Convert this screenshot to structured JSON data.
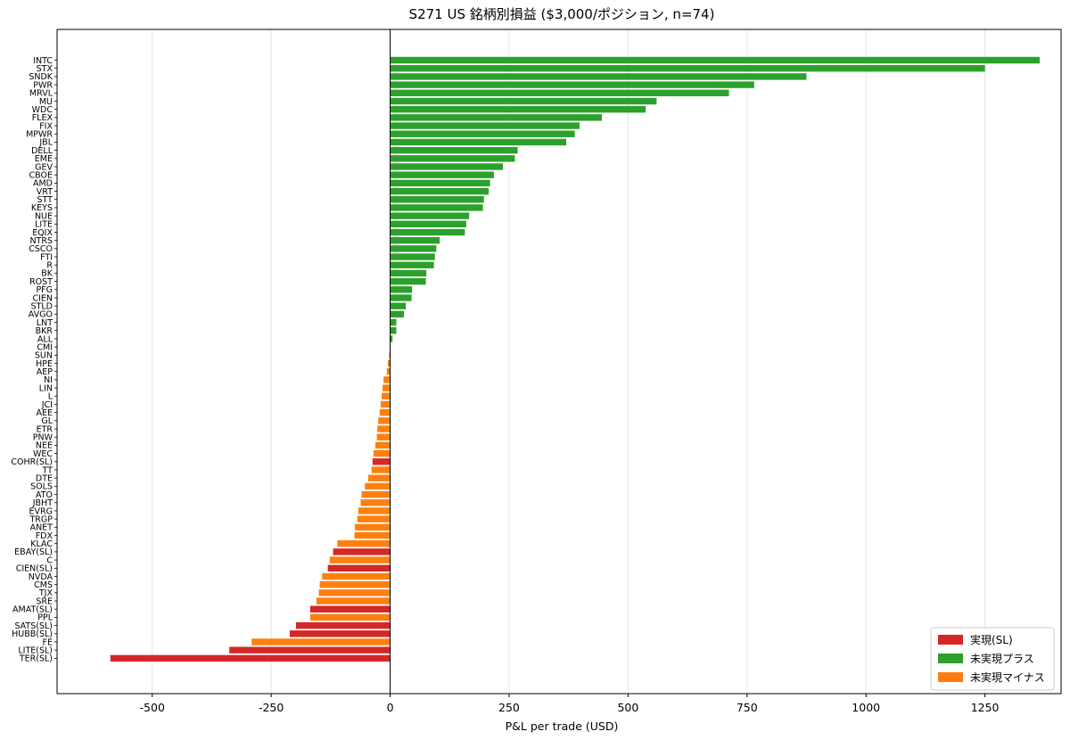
{
  "chart_data": {
    "type": "bar",
    "orientation": "horizontal",
    "title": "S271 US 銘柄別損益 ($3,000/ポジション, n=74)",
    "xlabel": "P&L per trade (USD)",
    "ylabel": "",
    "xlim": [
      -700,
      1410
    ],
    "xticks": [
      -500,
      -250,
      0,
      250,
      500,
      750,
      1000,
      1250
    ],
    "xtick_labels": [
      "-500",
      "-250",
      "0",
      "250",
      "500",
      "750",
      "1000",
      "1250"
    ],
    "grid": "vertical",
    "legend_position": "bottom-right",
    "colors": {
      "realized": "#d62728",
      "unrealized_plus": "#2ca02c",
      "unrealized_minus": "#ff7f0e"
    },
    "legend": [
      {
        "key": "realized",
        "label": "実現(SL)"
      },
      {
        "key": "unrealized_plus",
        "label": "未実現プラス"
      },
      {
        "key": "unrealized_minus",
        "label": "未実現マイナス"
      }
    ],
    "bars": [
      {
        "label": "INTC",
        "value": 1365,
        "status": "unrealized_plus"
      },
      {
        "label": "STX",
        "value": 1250,
        "status": "unrealized_plus"
      },
      {
        "label": "SNDK",
        "value": 875,
        "status": "unrealized_plus"
      },
      {
        "label": "PWR",
        "value": 765,
        "status": "unrealized_plus"
      },
      {
        "label": "MRVL",
        "value": 712,
        "status": "unrealized_plus"
      },
      {
        "label": "MU",
        "value": 560,
        "status": "unrealized_plus"
      },
      {
        "label": "WDC",
        "value": 537,
        "status": "unrealized_plus"
      },
      {
        "label": "FLEX",
        "value": 445,
        "status": "unrealized_plus"
      },
      {
        "label": "FIX",
        "value": 398,
        "status": "unrealized_plus"
      },
      {
        "label": "MPWR",
        "value": 388,
        "status": "unrealized_plus"
      },
      {
        "label": "JBL",
        "value": 370,
        "status": "unrealized_plus"
      },
      {
        "label": "DELL",
        "value": 268,
        "status": "unrealized_plus"
      },
      {
        "label": "EME",
        "value": 262,
        "status": "unrealized_plus"
      },
      {
        "label": "GEV",
        "value": 237,
        "status": "unrealized_plus"
      },
      {
        "label": "CBOE",
        "value": 218,
        "status": "unrealized_plus"
      },
      {
        "label": "AMD",
        "value": 210,
        "status": "unrealized_plus"
      },
      {
        "label": "VRT",
        "value": 207,
        "status": "unrealized_plus"
      },
      {
        "label": "STT",
        "value": 197,
        "status": "unrealized_plus"
      },
      {
        "label": "KEYS",
        "value": 195,
        "status": "unrealized_plus"
      },
      {
        "label": "NUE",
        "value": 166,
        "status": "unrealized_plus"
      },
      {
        "label": "LITE",
        "value": 160,
        "status": "unrealized_plus"
      },
      {
        "label": "EQIX",
        "value": 157,
        "status": "unrealized_plus"
      },
      {
        "label": "NTRS",
        "value": 104,
        "status": "unrealized_plus"
      },
      {
        "label": "CSCO",
        "value": 97,
        "status": "unrealized_plus"
      },
      {
        "label": "FTI",
        "value": 94,
        "status": "unrealized_plus"
      },
      {
        "label": "R",
        "value": 92,
        "status": "unrealized_plus"
      },
      {
        "label": "BK",
        "value": 76,
        "status": "unrealized_plus"
      },
      {
        "label": "ROST",
        "value": 75,
        "status": "unrealized_plus"
      },
      {
        "label": "PFG",
        "value": 46,
        "status": "unrealized_plus"
      },
      {
        "label": "CIEN",
        "value": 45,
        "status": "unrealized_plus"
      },
      {
        "label": "STLD",
        "value": 33,
        "status": "unrealized_plus"
      },
      {
        "label": "AVGO",
        "value": 29,
        "status": "unrealized_plus"
      },
      {
        "label": "LNT",
        "value": 13,
        "status": "unrealized_plus"
      },
      {
        "label": "BKR",
        "value": 13,
        "status": "unrealized_plus"
      },
      {
        "label": "ALL",
        "value": 5,
        "status": "unrealized_plus"
      },
      {
        "label": "CMI",
        "value": 1,
        "status": "unrealized_plus"
      },
      {
        "label": "SUN",
        "value": -2,
        "status": "unrealized_minus"
      },
      {
        "label": "HPE",
        "value": -5,
        "status": "unrealized_minus"
      },
      {
        "label": "AEP",
        "value": -7,
        "status": "unrealized_minus"
      },
      {
        "label": "NI",
        "value": -14,
        "status": "unrealized_minus"
      },
      {
        "label": "LIN",
        "value": -16,
        "status": "unrealized_minus"
      },
      {
        "label": "L",
        "value": -18,
        "status": "unrealized_minus"
      },
      {
        "label": "JCI",
        "value": -20,
        "status": "unrealized_minus"
      },
      {
        "label": "AEE",
        "value": -22,
        "status": "unrealized_minus"
      },
      {
        "label": "GL",
        "value": -25,
        "status": "unrealized_minus"
      },
      {
        "label": "ETR",
        "value": -27,
        "status": "unrealized_minus"
      },
      {
        "label": "PNW",
        "value": -28,
        "status": "unrealized_minus"
      },
      {
        "label": "NEE",
        "value": -31,
        "status": "unrealized_minus"
      },
      {
        "label": "WEC",
        "value": -35,
        "status": "unrealized_minus"
      },
      {
        "label": "COHR(SL)",
        "value": -37,
        "status": "realized"
      },
      {
        "label": "TT",
        "value": -39,
        "status": "unrealized_minus"
      },
      {
        "label": "DTE",
        "value": -46,
        "status": "unrealized_minus"
      },
      {
        "label": "SOLS",
        "value": -53,
        "status": "unrealized_minus"
      },
      {
        "label": "ATO",
        "value": -60,
        "status": "unrealized_minus"
      },
      {
        "label": "JBHT",
        "value": -62,
        "status": "unrealized_minus"
      },
      {
        "label": "EVRG",
        "value": -67,
        "status": "unrealized_minus"
      },
      {
        "label": "TRGP",
        "value": -69,
        "status": "unrealized_minus"
      },
      {
        "label": "ANET",
        "value": -74,
        "status": "unrealized_minus"
      },
      {
        "label": "FDX",
        "value": -75,
        "status": "unrealized_minus"
      },
      {
        "label": "KLAC",
        "value": -111,
        "status": "unrealized_minus"
      },
      {
        "label": "EBAY(SL)",
        "value": -120,
        "status": "realized"
      },
      {
        "label": "C",
        "value": -127,
        "status": "unrealized_minus"
      },
      {
        "label": "CIEN(SL)",
        "value": -131,
        "status": "realized"
      },
      {
        "label": "NVDA",
        "value": -143,
        "status": "unrealized_minus"
      },
      {
        "label": "CMS",
        "value": -148,
        "status": "unrealized_minus"
      },
      {
        "label": "TJX",
        "value": -150,
        "status": "unrealized_minus"
      },
      {
        "label": "SRE",
        "value": -155,
        "status": "unrealized_minus"
      },
      {
        "label": "AMAT(SL)",
        "value": -168,
        "status": "realized"
      },
      {
        "label": "PPL",
        "value": -168,
        "status": "unrealized_minus"
      },
      {
        "label": "SATS(SL)",
        "value": -198,
        "status": "realized"
      },
      {
        "label": "HUBB(SL)",
        "value": -211,
        "status": "realized"
      },
      {
        "label": "FE",
        "value": -291,
        "status": "unrealized_minus"
      },
      {
        "label": "LITE(SL)",
        "value": -338,
        "status": "realized"
      },
      {
        "label": "TER(SL)",
        "value": -588,
        "status": "realized"
      }
    ]
  }
}
